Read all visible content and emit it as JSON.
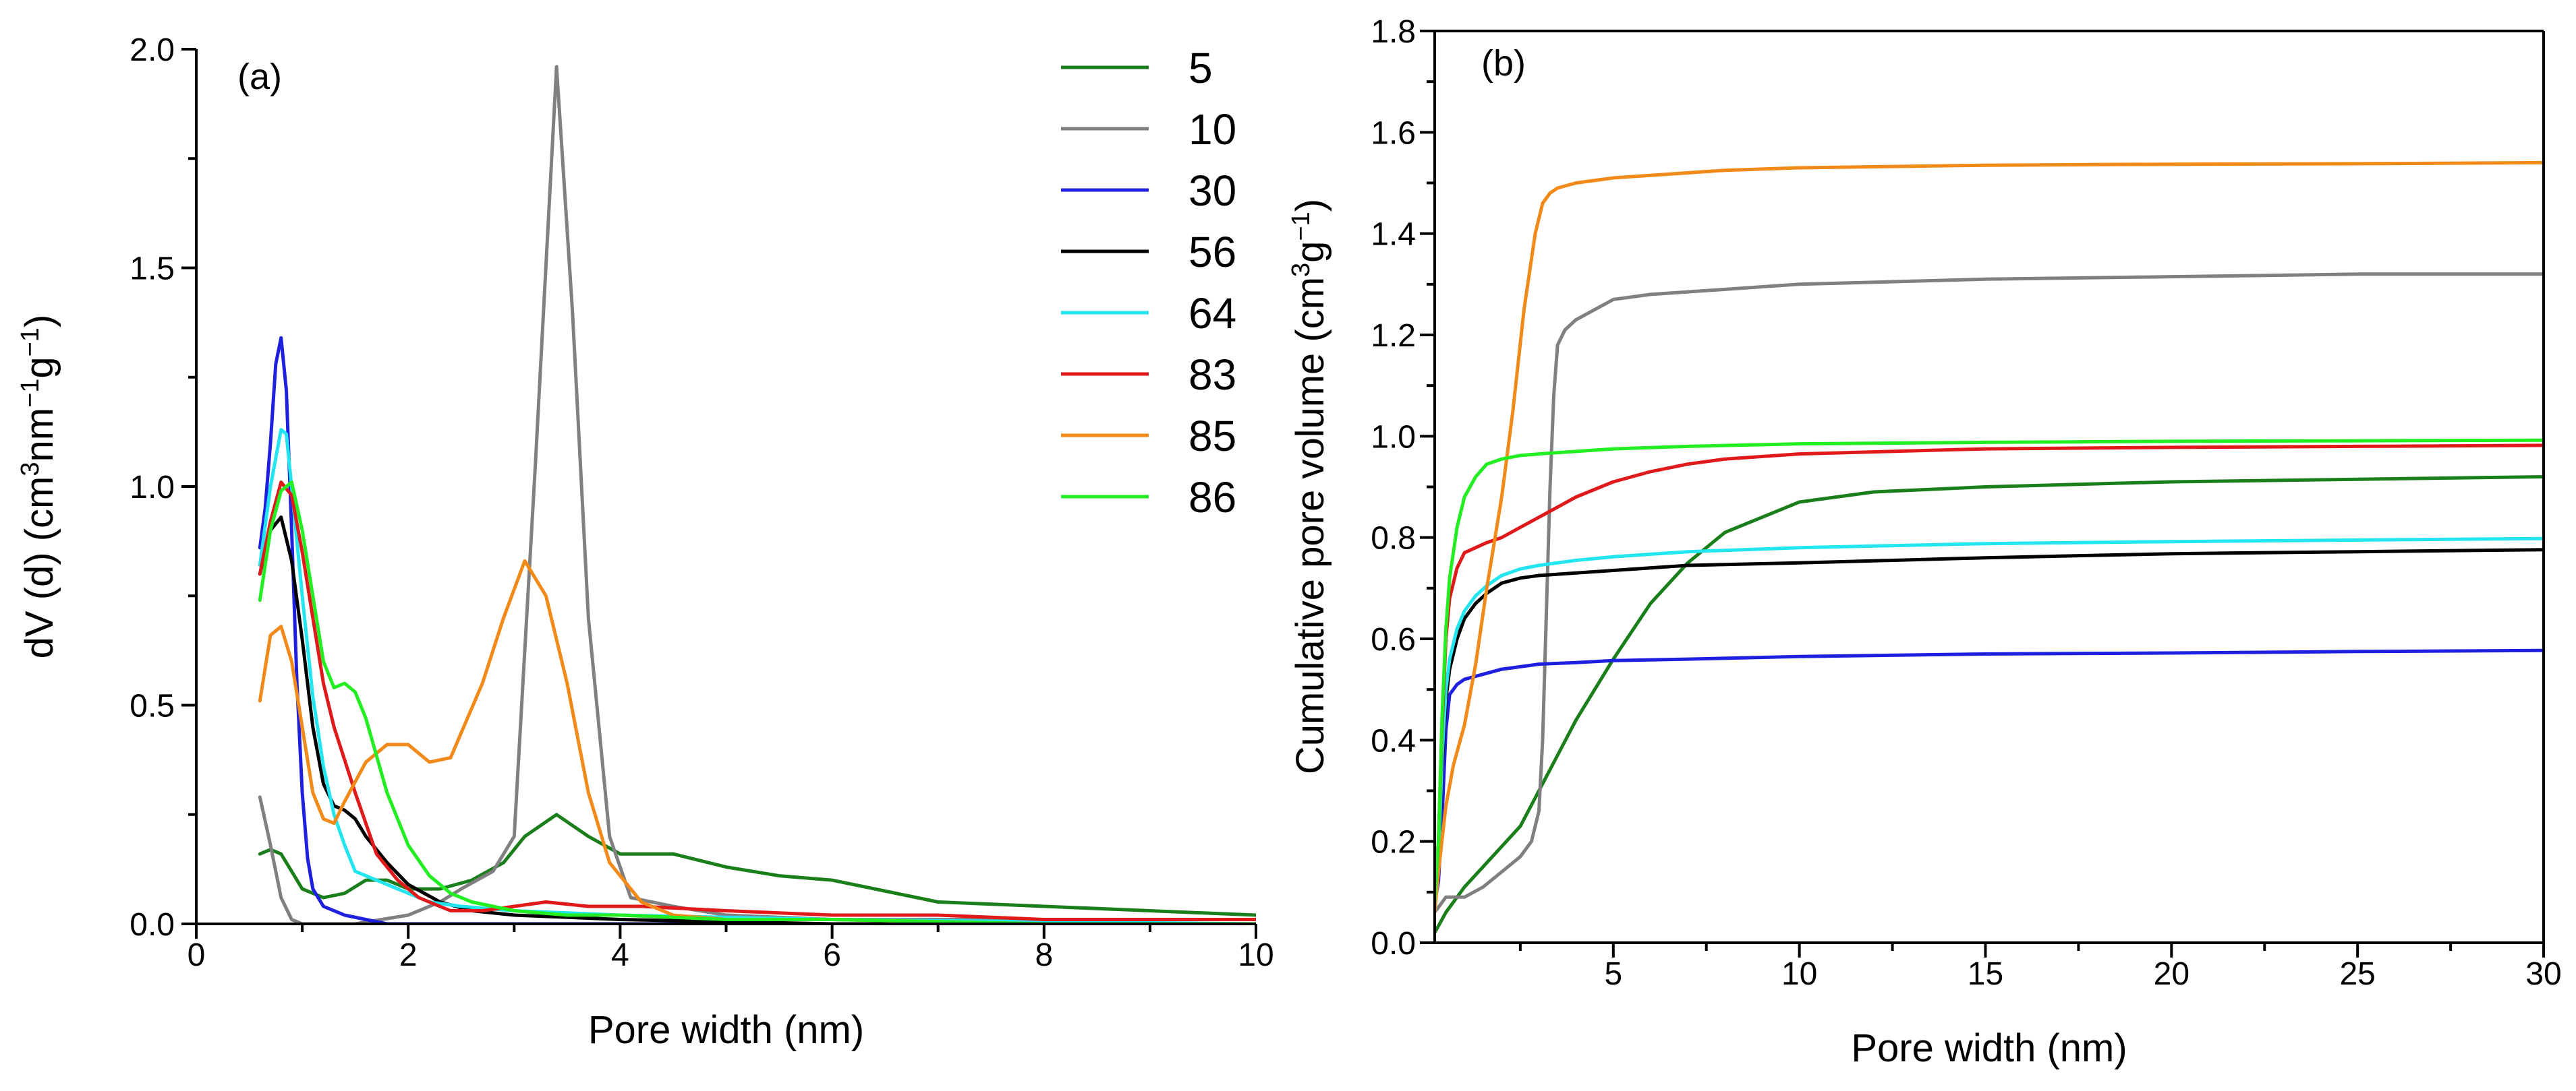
{
  "chart_data": [
    {
      "type": "line",
      "panel_label": "(a)",
      "xlabel": "Pore width (nm)",
      "ylabel": "dV (d) (cm³nm⁻¹g⁻¹)",
      "ylabel_parts": [
        "dV (d) (cm",
        "3",
        "nm",
        "−1",
        "g",
        "−1",
        ")"
      ],
      "xlim": [
        0,
        10
      ],
      "ylim": [
        0,
        2.0
      ],
      "xticks": [
        "0",
        "2",
        "4",
        "6",
        "8",
        "10"
      ],
      "yticks": [
        "0.0",
        "0.5",
        "1.0",
        "1.5",
        "2.0"
      ],
      "legend_position": "top-right",
      "series": [
        {
          "name": "5",
          "color": "#1a7f1a",
          "x": [
            0.6,
            0.7,
            0.8,
            0.9,
            1.0,
            1.2,
            1.4,
            1.6,
            1.8,
            2.0,
            2.3,
            2.6,
            2.9,
            3.1,
            3.4,
            3.7,
            4.0,
            4.5,
            5.0,
            5.5,
            6.0,
            7.0,
            8.0,
            9.0,
            10.0
          ],
          "y": [
            0.16,
            0.17,
            0.16,
            0.12,
            0.08,
            0.06,
            0.07,
            0.1,
            0.1,
            0.08,
            0.08,
            0.1,
            0.14,
            0.2,
            0.25,
            0.2,
            0.16,
            0.16,
            0.13,
            0.11,
            0.1,
            0.05,
            0.04,
            0.03,
            0.02
          ]
        },
        {
          "name": "10",
          "color": "#808080",
          "x": [
            0.6,
            0.7,
            0.8,
            0.9,
            1.0,
            1.2,
            1.5,
            2.0,
            2.3,
            2.5,
            2.8,
            3.0,
            3.2,
            3.4,
            3.55,
            3.7,
            3.9,
            4.1,
            4.5,
            5.0,
            6.0,
            8.0,
            10.0
          ],
          "y": [
            0.29,
            0.18,
            0.06,
            0.01,
            0.0,
            0.0,
            0.0,
            0.02,
            0.05,
            0.08,
            0.12,
            0.2,
            1.05,
            1.96,
            1.4,
            0.7,
            0.2,
            0.06,
            0.04,
            0.02,
            0.01,
            0.01,
            0.01
          ]
        },
        {
          "name": "30",
          "color": "#1f1fe0",
          "x": [
            0.6,
            0.65,
            0.7,
            0.75,
            0.8,
            0.85,
            0.9,
            0.95,
            1.0,
            1.05,
            1.1,
            1.2,
            1.4,
            1.6,
            1.8,
            2.0,
            3.0,
            5.0,
            10.0
          ],
          "y": [
            0.86,
            0.95,
            1.1,
            1.28,
            1.34,
            1.22,
            0.9,
            0.55,
            0.3,
            0.15,
            0.08,
            0.04,
            0.02,
            0.01,
            0.0,
            0.0,
            0.0,
            0.0,
            0.0
          ]
        },
        {
          "name": "56",
          "color": "#000000",
          "x": [
            0.6,
            0.7,
            0.8,
            0.9,
            1.0,
            1.1,
            1.2,
            1.3,
            1.4,
            1.5,
            1.6,
            1.8,
            2.0,
            2.3,
            2.6,
            3.0,
            4.0,
            6.0,
            10.0
          ],
          "y": [
            0.8,
            0.9,
            0.93,
            0.83,
            0.65,
            0.45,
            0.32,
            0.27,
            0.26,
            0.24,
            0.2,
            0.14,
            0.09,
            0.05,
            0.03,
            0.02,
            0.01,
            0.0,
            0.0
          ]
        },
        {
          "name": "64",
          "color": "#22e5f0",
          "x": [
            0.6,
            0.7,
            0.8,
            0.85,
            0.9,
            1.0,
            1.1,
            1.2,
            1.3,
            1.4,
            1.5,
            1.7,
            1.9,
            2.2,
            2.5,
            3.0,
            4.0,
            6.0,
            10.0
          ],
          "y": [
            0.82,
            1.0,
            1.13,
            1.12,
            1.0,
            0.75,
            0.52,
            0.36,
            0.25,
            0.18,
            0.12,
            0.1,
            0.08,
            0.05,
            0.04,
            0.03,
            0.02,
            0.01,
            0.0
          ]
        },
        {
          "name": "83",
          "color": "#e01a1a",
          "x": [
            0.6,
            0.7,
            0.8,
            0.9,
            1.0,
            1.1,
            1.2,
            1.3,
            1.5,
            1.7,
            1.9,
            2.1,
            2.4,
            2.7,
            3.0,
            3.3,
            3.7,
            4.2,
            5.0,
            6.0,
            7.0,
            8.0,
            9.0,
            10.0
          ],
          "y": [
            0.8,
            0.92,
            1.01,
            0.98,
            0.85,
            0.7,
            0.55,
            0.45,
            0.3,
            0.16,
            0.1,
            0.06,
            0.03,
            0.03,
            0.04,
            0.05,
            0.04,
            0.04,
            0.03,
            0.02,
            0.02,
            0.01,
            0.01,
            0.01
          ]
        },
        {
          "name": "85",
          "color": "#f28a1a",
          "x": [
            0.6,
            0.7,
            0.8,
            0.9,
            1.0,
            1.1,
            1.2,
            1.3,
            1.4,
            1.6,
            1.8,
            2.0,
            2.2,
            2.4,
            2.7,
            2.9,
            3.1,
            3.3,
            3.5,
            3.7,
            3.9,
            4.2,
            4.5,
            5.0,
            6.0,
            8.0,
            10.0
          ],
          "y": [
            0.51,
            0.66,
            0.68,
            0.6,
            0.45,
            0.3,
            0.24,
            0.23,
            0.28,
            0.37,
            0.41,
            0.41,
            0.37,
            0.38,
            0.55,
            0.7,
            0.83,
            0.75,
            0.55,
            0.3,
            0.14,
            0.05,
            0.02,
            0.01,
            0.01,
            0.0,
            0.0
          ]
        },
        {
          "name": "86",
          "color": "#22ee22",
          "x": [
            0.6,
            0.7,
            0.8,
            0.9,
            1.0,
            1.1,
            1.2,
            1.3,
            1.4,
            1.5,
            1.6,
            1.8,
            2.0,
            2.2,
            2.4,
            2.6,
            3.0,
            3.5,
            4.0,
            5.0,
            6.0,
            8.0,
            10.0
          ],
          "y": [
            0.74,
            0.9,
            0.99,
            1.01,
            0.9,
            0.75,
            0.6,
            0.54,
            0.55,
            0.53,
            0.47,
            0.3,
            0.18,
            0.11,
            0.07,
            0.05,
            0.03,
            0.02,
            0.02,
            0.01,
            0.01,
            0.0,
            0.0
          ]
        }
      ]
    },
    {
      "type": "line",
      "panel_label": "(b)",
      "xlabel": "Pore width (nm)",
      "ylabel": "Cumulative pore volume (cm³g⁻¹)",
      "ylabel_parts": [
        "Cumulative pore volume (cm",
        "3",
        "g",
        "−1",
        ")"
      ],
      "xlim": [
        0.2,
        30
      ],
      "ylim": [
        0,
        1.8
      ],
      "xticks": [
        "5",
        "10",
        "15",
        "20",
        "25",
        "30"
      ],
      "yticks": [
        "0.0",
        "0.2",
        "0.4",
        "0.6",
        "0.8",
        "1.0",
        "1.2",
        "1.4",
        "1.6",
        "1.8"
      ],
      "series": [
        {
          "name": "5",
          "color": "#1a7f1a",
          "x": [
            0.2,
            0.5,
            1.0,
            1.5,
            2.0,
            2.5,
            3.0,
            3.5,
            4.0,
            5.0,
            6.0,
            7.0,
            8.0,
            10.0,
            12.0,
            15.0,
            20.0,
            25.0,
            30.0
          ],
          "y": [
            0.02,
            0.06,
            0.11,
            0.15,
            0.19,
            0.23,
            0.3,
            0.37,
            0.44,
            0.56,
            0.67,
            0.75,
            0.81,
            0.87,
            0.89,
            0.9,
            0.91,
            0.915,
            0.92
          ]
        },
        {
          "name": "10",
          "color": "#808080",
          "x": [
            0.2,
            0.5,
            1.0,
            1.5,
            2.0,
            2.5,
            2.8,
            3.0,
            3.1,
            3.2,
            3.3,
            3.4,
            3.5,
            3.7,
            4.0,
            5.0,
            6.0,
            8.0,
            10.0,
            15.0,
            20.0,
            25.0,
            30.0
          ],
          "y": [
            0.06,
            0.09,
            0.09,
            0.11,
            0.14,
            0.17,
            0.2,
            0.26,
            0.4,
            0.65,
            0.9,
            1.08,
            1.18,
            1.21,
            1.23,
            1.27,
            1.28,
            1.29,
            1.3,
            1.31,
            1.315,
            1.32,
            1.32
          ]
        },
        {
          "name": "30",
          "color": "#1f1fe0",
          "x": [
            0.2,
            0.3,
            0.4,
            0.5,
            0.6,
            0.8,
            1.0,
            1.5,
            2.0,
            3.0,
            4.0,
            5.0,
            7.0,
            10.0,
            15.0,
            20.0,
            25.0,
            30.0
          ],
          "y": [
            0.08,
            0.12,
            0.25,
            0.42,
            0.49,
            0.51,
            0.52,
            0.53,
            0.54,
            0.55,
            0.553,
            0.557,
            0.56,
            0.565,
            0.57,
            0.572,
            0.575,
            0.577
          ]
        },
        {
          "name": "56",
          "color": "#000000",
          "x": [
            0.2,
            0.3,
            0.4,
            0.5,
            0.6,
            0.8,
            1.0,
            1.3,
            1.6,
            2.0,
            2.5,
            3.0,
            4.0,
            5.0,
            7.0,
            10.0,
            15.0,
            20.0,
            25.0,
            30.0
          ],
          "y": [
            0.08,
            0.15,
            0.35,
            0.48,
            0.54,
            0.6,
            0.64,
            0.67,
            0.69,
            0.71,
            0.72,
            0.725,
            0.73,
            0.735,
            0.745,
            0.75,
            0.76,
            0.768,
            0.772,
            0.776
          ]
        },
        {
          "name": "64",
          "color": "#22e5f0",
          "x": [
            0.2,
            0.3,
            0.4,
            0.5,
            0.6,
            0.8,
            1.0,
            1.3,
            1.6,
            2.0,
            2.5,
            3.0,
            4.0,
            5.0,
            7.0,
            10.0,
            15.0,
            20.0,
            25.0,
            30.0
          ],
          "y": [
            0.08,
            0.16,
            0.37,
            0.5,
            0.56,
            0.62,
            0.655,
            0.685,
            0.705,
            0.725,
            0.738,
            0.745,
            0.755,
            0.762,
            0.772,
            0.78,
            0.788,
            0.792,
            0.795,
            0.798
          ]
        },
        {
          "name": "83",
          "color": "#e01a1a",
          "x": [
            0.2,
            0.3,
            0.4,
            0.5,
            0.6,
            0.8,
            1.0,
            1.3,
            1.6,
            2.0,
            2.5,
            3.0,
            3.5,
            4.0,
            5.0,
            6.0,
            7.0,
            8.0,
            10.0,
            15.0,
            20.0,
            25.0,
            30.0
          ],
          "y": [
            0.1,
            0.2,
            0.43,
            0.6,
            0.68,
            0.74,
            0.77,
            0.78,
            0.79,
            0.8,
            0.82,
            0.84,
            0.86,
            0.88,
            0.91,
            0.93,
            0.945,
            0.955,
            0.965,
            0.975,
            0.978,
            0.98,
            0.982
          ]
        },
        {
          "name": "85",
          "color": "#f28a1a",
          "x": [
            0.2,
            0.3,
            0.5,
            0.7,
            1.0,
            1.3,
            1.6,
            2.0,
            2.3,
            2.6,
            2.9,
            3.1,
            3.3,
            3.5,
            4.0,
            5.0,
            6.0,
            8.0,
            10.0,
            15.0,
            20.0,
            25.0,
            30.0
          ],
          "y": [
            0.06,
            0.14,
            0.27,
            0.35,
            0.43,
            0.55,
            0.7,
            0.88,
            1.05,
            1.25,
            1.4,
            1.46,
            1.48,
            1.49,
            1.5,
            1.51,
            1.515,
            1.525,
            1.53,
            1.535,
            1.537,
            1.538,
            1.54
          ]
        },
        {
          "name": "86",
          "color": "#22ee22",
          "x": [
            0.2,
            0.3,
            0.4,
            0.5,
            0.6,
            0.8,
            1.0,
            1.3,
            1.6,
            2.0,
            2.5,
            3.0,
            4.0,
            5.0,
            7.0,
            10.0,
            15.0,
            20.0,
            25.0,
            30.0
          ],
          "y": [
            0.08,
            0.2,
            0.45,
            0.62,
            0.72,
            0.82,
            0.88,
            0.92,
            0.945,
            0.955,
            0.962,
            0.965,
            0.97,
            0.975,
            0.98,
            0.985,
            0.988,
            0.99,
            0.991,
            0.992
          ]
        }
      ]
    }
  ]
}
